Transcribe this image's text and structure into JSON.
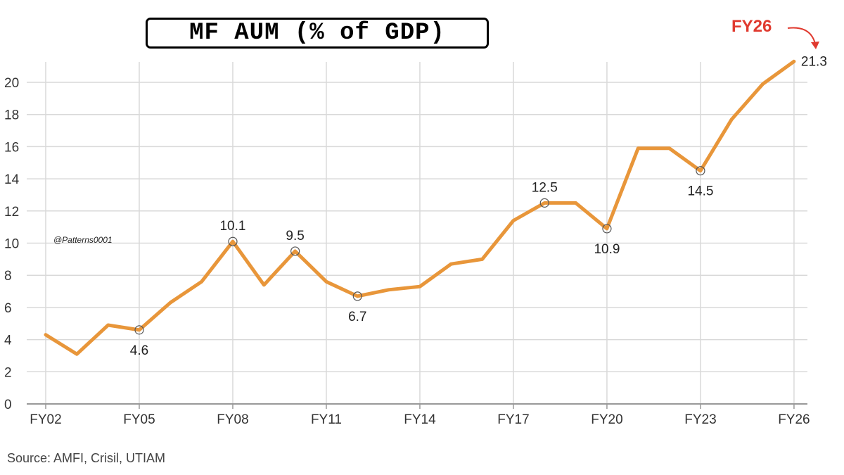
{
  "title": "MF AUM (% of GDP)",
  "source": "Source: AMFI, Crisil, UTIAM",
  "watermark": "@Patterns0001",
  "highlight": {
    "label": "FY26",
    "color": "#e03a2f"
  },
  "colors": {
    "line": "#e8963a",
    "grid": "#d9d9d9",
    "axis": "#999999",
    "marker": "#555555"
  },
  "chart_data": {
    "type": "line",
    "x": [
      "FY02",
      "FY03",
      "FY04",
      "FY05",
      "FY06",
      "FY07",
      "FY08",
      "FY09",
      "FY10",
      "FY11",
      "FY12",
      "FY13",
      "FY14",
      "FY15",
      "FY16",
      "FY17",
      "FY18",
      "FY19",
      "FY20",
      "FY21",
      "FY22",
      "FY23",
      "FY24",
      "FY25",
      "FY26"
    ],
    "series": [
      {
        "values": [
          4.3,
          3.1,
          4.9,
          4.6,
          6.3,
          7.6,
          10.1,
          7.4,
          9.5,
          7.6,
          6.7,
          7.1,
          7.3,
          8.7,
          9.0,
          11.4,
          12.5,
          12.5,
          10.9,
          15.9,
          15.9,
          14.5,
          17.7,
          19.9,
          21.3
        ]
      }
    ],
    "labeled_points": [
      {
        "x": "FY05",
        "value": "4.6",
        "position": "below"
      },
      {
        "x": "FY08",
        "value": "10.1",
        "position": "above"
      },
      {
        "x": "FY10",
        "value": "9.5",
        "position": "above"
      },
      {
        "x": "FY12",
        "value": "6.7",
        "position": "below"
      },
      {
        "x": "FY18",
        "value": "12.5",
        "position": "above"
      },
      {
        "x": "FY20",
        "value": "10.9",
        "position": "below"
      },
      {
        "x": "FY23",
        "value": "14.5",
        "position": "below"
      },
      {
        "x": "FY26",
        "value": "21.3",
        "position": "right"
      }
    ],
    "x_tick_labels": [
      "FY02",
      "FY05",
      "FY08",
      "FY11",
      "FY14",
      "FY17",
      "FY20",
      "FY23",
      "FY26"
    ],
    "y_ticks": [
      0,
      2,
      4,
      6,
      8,
      10,
      12,
      14,
      16,
      18,
      20
    ],
    "ylim": [
      0,
      21.3
    ],
    "grid": true
  }
}
